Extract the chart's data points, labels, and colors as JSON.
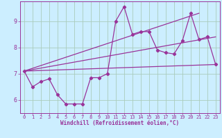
{
  "background_color": "#cceeff",
  "grid_color": "#aaccbb",
  "line_color": "#993399",
  "spine_color": "#993399",
  "xlim": [
    -0.5,
    23.5
  ],
  "ylim": [
    5.5,
    9.75
  ],
  "yticks": [
    6,
    7,
    8,
    9
  ],
  "xticks": [
    0,
    1,
    2,
    3,
    4,
    5,
    6,
    7,
    8,
    9,
    10,
    11,
    12,
    13,
    14,
    15,
    16,
    17,
    18,
    19,
    20,
    21,
    22,
    23
  ],
  "xlabel": "Windchill (Refroidissement éolien,°C)",
  "series_main": {
    "x": [
      0,
      1,
      2,
      3,
      4,
      5,
      6,
      7,
      8,
      9,
      10,
      11,
      12,
      13,
      14,
      15,
      16,
      17,
      18,
      19,
      20,
      21,
      22,
      23
    ],
    "y": [
      7.1,
      6.5,
      6.7,
      6.8,
      6.2,
      5.85,
      5.85,
      5.85,
      6.85,
      6.85,
      7.0,
      9.0,
      9.55,
      8.5,
      8.6,
      8.6,
      7.9,
      7.8,
      7.75,
      8.25,
      9.3,
      8.3,
      8.4,
      7.35
    ]
  },
  "line1": {
    "x": [
      0,
      23
    ],
    "y": [
      7.1,
      7.35
    ]
  },
  "line2": {
    "x": [
      0,
      21
    ],
    "y": [
      7.1,
      9.3
    ]
  },
  "line3": {
    "x": [
      0,
      23
    ],
    "y": [
      7.1,
      8.4
    ]
  }
}
